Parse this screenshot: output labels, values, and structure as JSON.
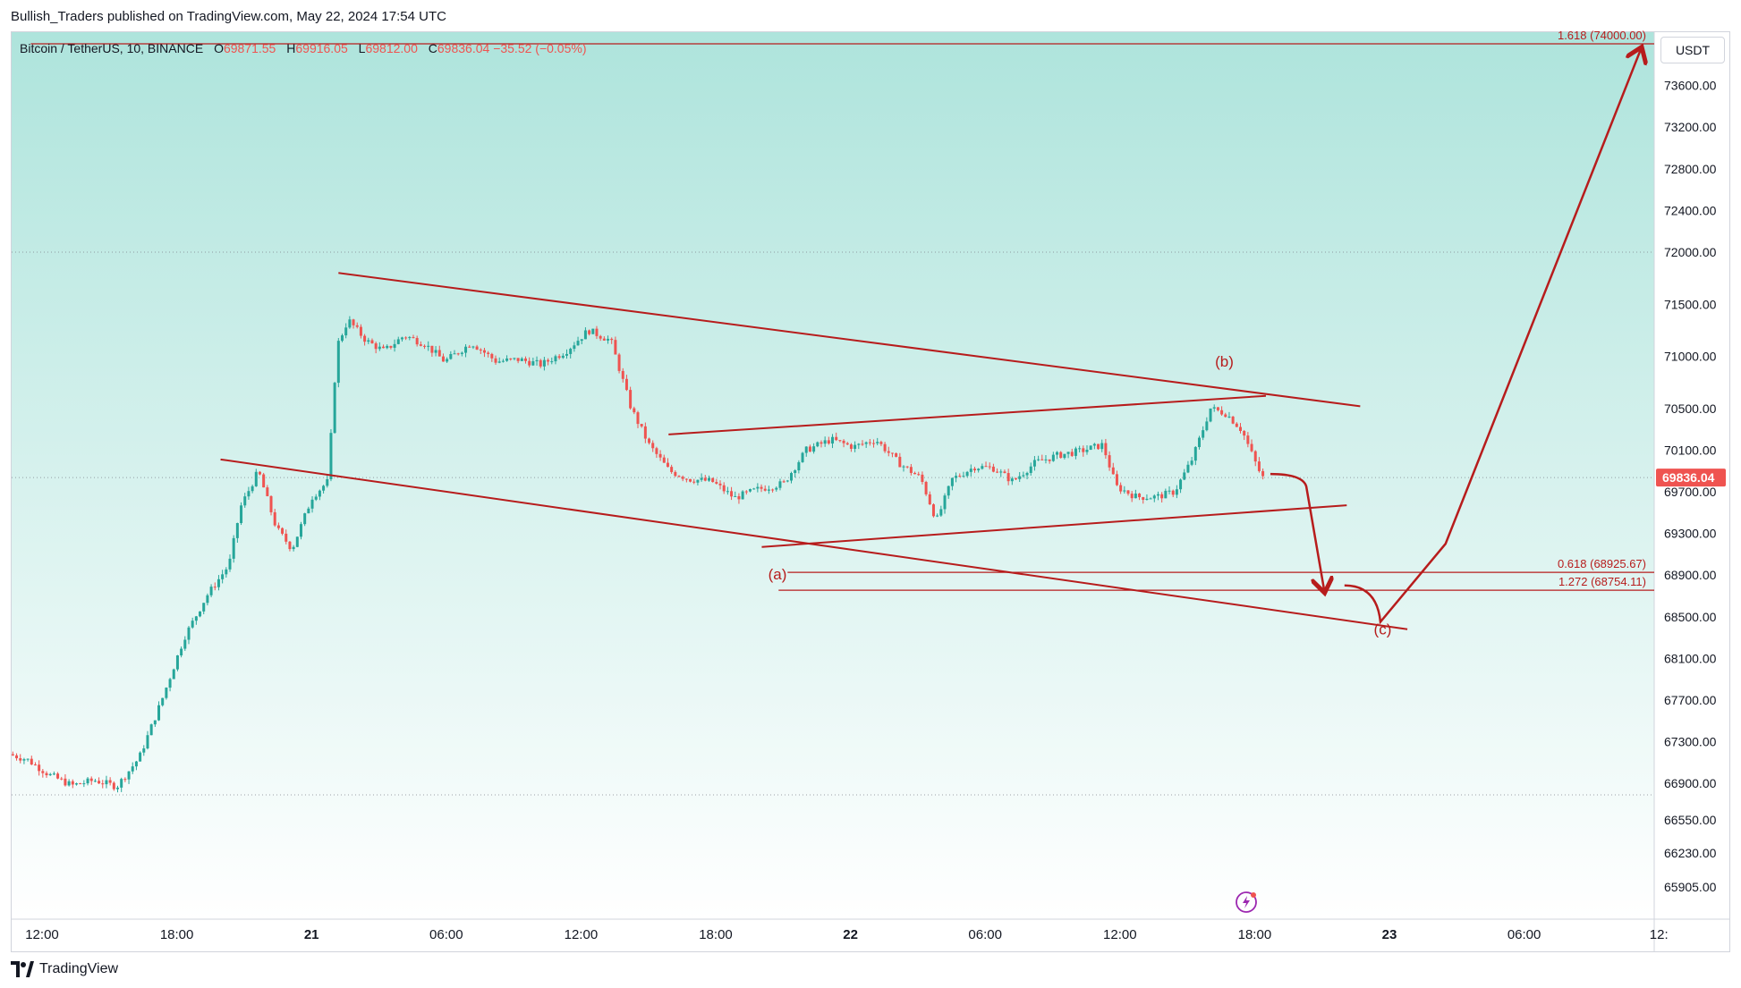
{
  "header": {
    "published": "Bullish_Traders published on TradingView.com, May 22, 2024 17:54 UTC"
  },
  "legend": {
    "symbol": "Bitcoin / TetherUS, 10, BINANCE",
    "open_label": "O",
    "open": "69871.55",
    "high_label": "H",
    "high": "69916.05",
    "low_label": "L",
    "low": "69812.00",
    "close_label": "C",
    "close": "69836.04",
    "change": "−35.52 (−0.05%)"
  },
  "currency": "USDT",
  "footer": {
    "brand": "TradingView"
  },
  "colors": {
    "bull": "#26a69a",
    "bear": "#ef5350",
    "drawing": "#b71c1c",
    "bg_top": "#aee4dc",
    "bg_bottom": "#ffffff",
    "price_tag": "#ef5350"
  },
  "chart_data": {
    "type": "candlestick",
    "title": "Bitcoin / TetherUS, 10, BINANCE",
    "interval": "10m",
    "current_price": "69836.04",
    "y_ticks": [
      "73600.00",
      "73200.00",
      "72800.00",
      "72400.00",
      "72000.00",
      "71500.00",
      "71000.00",
      "70500.00",
      "70100.00",
      "69700.00",
      "69300.00",
      "68900.00",
      "68500.00",
      "68100.00",
      "67700.00",
      "67300.00",
      "66900.00",
      "66550.00",
      "66230.00",
      "65905.00"
    ],
    "x_ticks": [
      "12:00",
      "18:00",
      "21",
      "06:00",
      "12:00",
      "18:00",
      "22",
      "06:00",
      "12:00",
      "18:00",
      "23",
      "06:00",
      "12:"
    ],
    "x_ticks_hours": [
      12,
      18,
      24,
      30,
      36,
      42,
      48,
      54,
      60,
      66,
      72,
      78,
      84
    ],
    "x_ticks_bold": [
      false,
      false,
      true,
      false,
      false,
      false,
      true,
      false,
      false,
      false,
      true,
      false,
      false
    ],
    "price_path_anchors": [
      [
        10.7,
        67180
      ],
      [
        11.5,
        67130
      ],
      [
        12.5,
        66980
      ],
      [
        13.5,
        66880
      ],
      [
        14.5,
        66930
      ],
      [
        15.5,
        66870
      ],
      [
        16.5,
        67150
      ],
      [
        17.5,
        67700
      ],
      [
        18.5,
        68300
      ],
      [
        19.5,
        68700
      ],
      [
        20.5,
        69000
      ],
      [
        21,
        69550
      ],
      [
        21.8,
        69900
      ],
      [
        22.6,
        69350
      ],
      [
        23.3,
        69150
      ],
      [
        24.2,
        69650
      ],
      [
        24.9,
        69800
      ],
      [
        25.3,
        71100
      ],
      [
        25.8,
        71350
      ],
      [
        26.6,
        71150
      ],
      [
        27.4,
        71050
      ],
      [
        28.3,
        71200
      ],
      [
        29.2,
        71120
      ],
      [
        30.1,
        70950
      ],
      [
        31.3,
        71130
      ],
      [
        32.4,
        70950
      ],
      [
        33.4,
        70970
      ],
      [
        34.4,
        70920
      ],
      [
        35.5,
        71050
      ],
      [
        36.5,
        71250
      ],
      [
        37.5,
        71150
      ],
      [
        38.4,
        70500
      ],
      [
        39.2,
        70150
      ],
      [
        40.1,
        69900
      ],
      [
        41.0,
        69820
      ],
      [
        42.0,
        69800
      ],
      [
        43.0,
        69640
      ],
      [
        44.0,
        69720
      ],
      [
        45.2,
        69780
      ],
      [
        46.2,
        70100
      ],
      [
        47.3,
        70200
      ],
      [
        48.3,
        70130
      ],
      [
        49.3,
        70200
      ],
      [
        50.3,
        69980
      ],
      [
        51.3,
        69830
      ],
      [
        52.0,
        69420
      ],
      [
        52.7,
        69820
      ],
      [
        53.7,
        69940
      ],
      [
        54.5,
        69930
      ],
      [
        55.4,
        69800
      ],
      [
        56.4,
        69980
      ],
      [
        57.4,
        70050
      ],
      [
        58.4,
        70090
      ],
      [
        59.4,
        70150
      ],
      [
        60.0,
        69750
      ],
      [
        60.9,
        69650
      ],
      [
        61.8,
        69650
      ],
      [
        62.6,
        69700
      ],
      [
        63.4,
        70020
      ],
      [
        64.2,
        70500
      ],
      [
        64.9,
        70450
      ],
      [
        65.6,
        70290
      ],
      [
        66.2,
        69980
      ],
      [
        66.5,
        69836
      ]
    ],
    "annotations": [
      {
        "label": "(a)",
        "hour": 44.75,
        "price": 68860
      },
      {
        "label": "(b)",
        "hour": 64.65,
        "price": 70900
      },
      {
        "label": "(c)",
        "hour": 71.7,
        "price": 68330
      }
    ],
    "fib_levels": [
      {
        "label": "0.618 (68925.67)",
        "price": 68925.67,
        "hour_start": 45.2
      },
      {
        "label": "1.272 (68754.11)",
        "price": 68754.11,
        "hour_start": 44.8
      },
      {
        "label": "1.618 (74000.00)",
        "price": 74000.0,
        "hour_start": 11.5
      }
    ],
    "trendlines": [
      {
        "from": [
          25.2,
          71800
        ],
        "to": [
          70.7,
          70520
        ]
      },
      {
        "from": [
          19.95,
          70010
        ],
        "to": [
          72.8,
          68380
        ]
      },
      {
        "from": [
          39.9,
          70250
        ],
        "to": [
          66.5,
          70620
        ]
      },
      {
        "from": [
          44.05,
          69170
        ],
        "to": [
          70.1,
          69570
        ]
      }
    ],
    "projection": {
      "path_hours_prices": [
        [
          66.7,
          69870
        ],
        [
          68.3,
          69750
        ],
        [
          69.1,
          68750
        ]
      ],
      "path2_hours_prices": [
        [
          70.0,
          68800
        ],
        [
          71.6,
          68450
        ],
        [
          74.5,
          69200
        ],
        [
          83.2,
          73950
        ]
      ]
    },
    "dotted_levels": [
      72000,
      69836.04,
      66790
    ]
  }
}
